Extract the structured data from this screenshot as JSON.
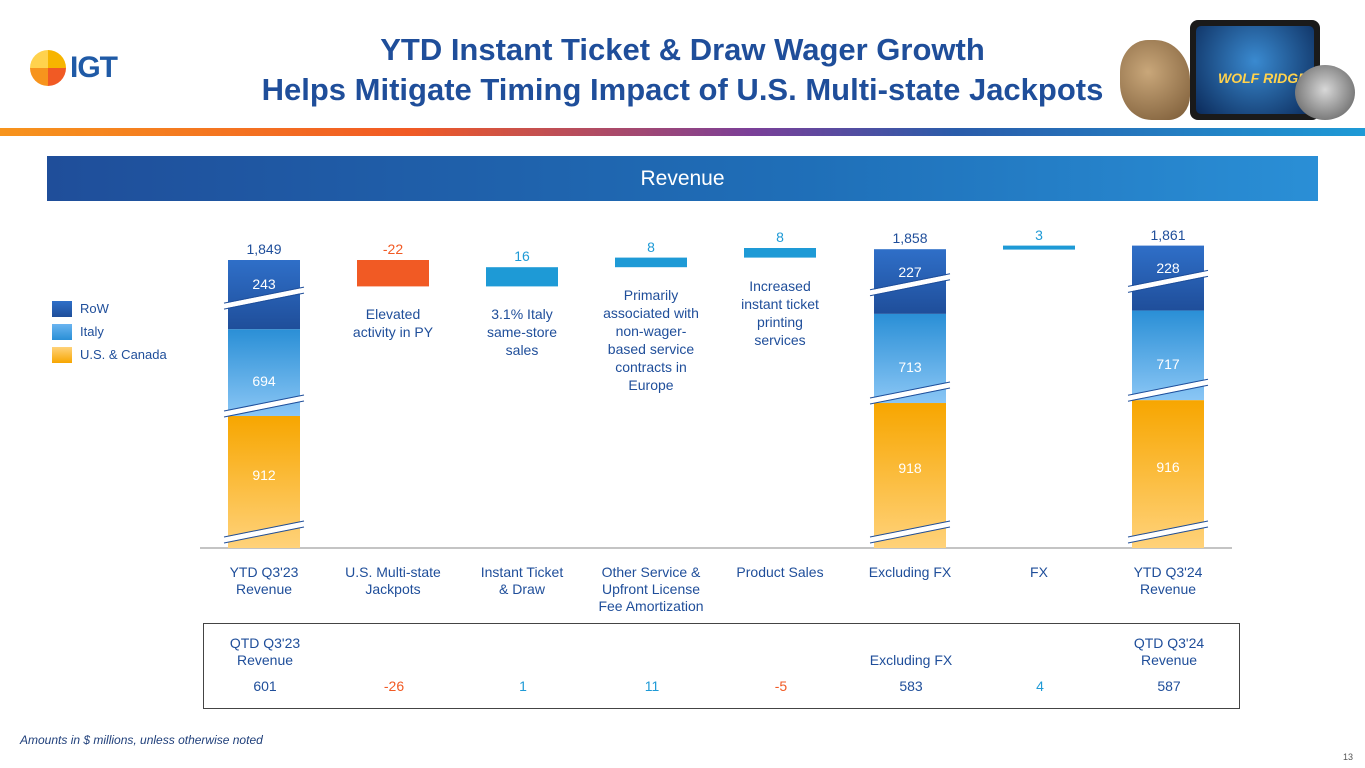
{
  "logo": "IGT",
  "title_line1": "YTD Instant Ticket & Draw Wager Growth",
  "title_line2": "Helps Mitigate Timing Impact of U.S. Multi-state Jackpots",
  "hero_text": "WOLF RIDGE",
  "banner": "Revenue",
  "legend": [
    "RoW",
    "Italy",
    "U.S. & Canada"
  ],
  "chart_data": {
    "type": "waterfall",
    "units": "$ millions",
    "series": [
      "RoW",
      "Italy",
      "U.S. & Canada"
    ],
    "colors": {
      "row": "#1f4e9a",
      "italy": "#2a8fd6",
      "us": "#f7a600",
      "negative": "#f15a24",
      "positive": "#1e9ad6"
    },
    "steps": [
      {
        "label": "YTD Q3'23\nRevenue",
        "kind": "total",
        "total": "1,849",
        "row": 243,
        "italy": 694,
        "us": 912
      },
      {
        "label": "U.S. Multi-state\nJackpots",
        "kind": "delta",
        "value": -22,
        "display": "-22",
        "note": "Elevated\nactivity in PY"
      },
      {
        "label": "Instant  Ticket\n& Draw",
        "kind": "delta",
        "value": 16,
        "display": "16",
        "note": "3.1% Italy\nsame-store\nsales"
      },
      {
        "label": "Other Service &\nUpfront License\nFee Amortization",
        "kind": "delta",
        "value": 8,
        "display": "8",
        "note": "Primarily\nassociated with\nnon-wager-\nbased service\ncontracts in\nEurope"
      },
      {
        "label": "Product Sales",
        "kind": "delta",
        "value": 8,
        "display": "8",
        "note": "Increased\ninstant ticket\nprinting\nservices"
      },
      {
        "label": "Excluding FX",
        "kind": "total",
        "total": "1,858",
        "row": 227,
        "italy": 713,
        "us": 918
      },
      {
        "label": "FX",
        "kind": "delta",
        "value": 3,
        "display": "3",
        "note": ""
      },
      {
        "label": "YTD Q3'24\nRevenue",
        "kind": "total",
        "total": "1,861",
        "row": 228,
        "italy": 717,
        "us": 916
      }
    ]
  },
  "qtd": {
    "headers": [
      "QTD Q3'23\nRevenue",
      "",
      "",
      "",
      "",
      "Excluding FX",
      "",
      "QTD Q3'24\nRevenue"
    ],
    "values": [
      "601",
      "-26",
      "1",
      "11",
      "-5",
      "583",
      "4",
      "587"
    ],
    "value_colors": [
      "#1f4e9a",
      "#f15a24",
      "#1e9ad6",
      "#1e9ad6",
      "#f15a24",
      "#1f4e9a",
      "#1e9ad6",
      "#1f4e9a"
    ]
  },
  "footnote": "Amounts in $ millions, unless otherwise noted",
  "page_number": "13"
}
